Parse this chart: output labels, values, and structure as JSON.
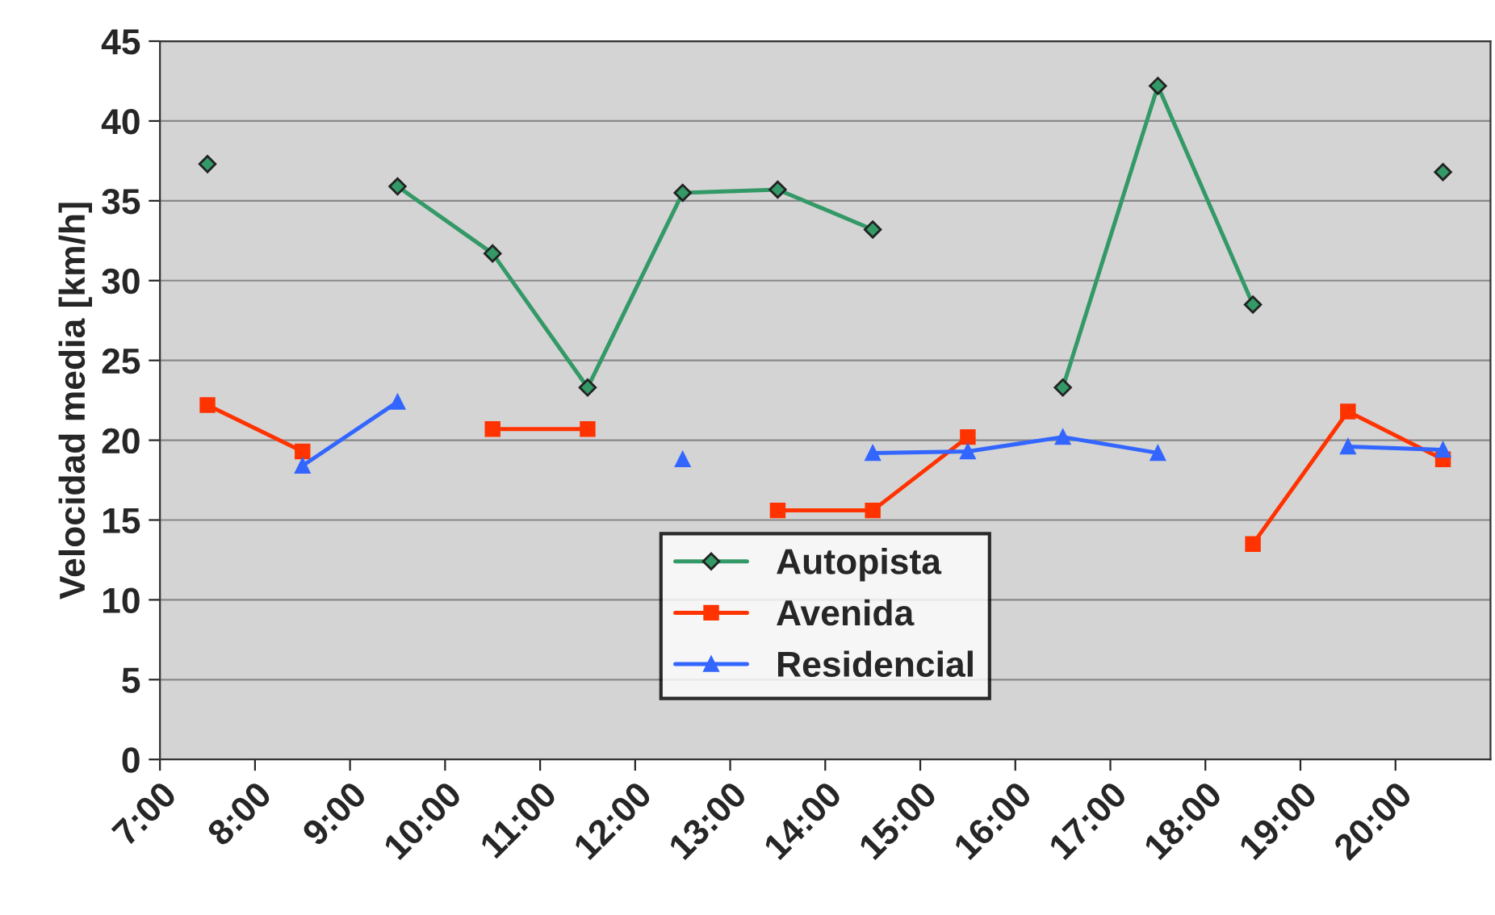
{
  "chart_data": {
    "type": "line",
    "ylabel": "Velocidad media [km/h]",
    "x": [
      7.5,
      8.5,
      9.5,
      10.5,
      11.5,
      12.5,
      13.5,
      14.5,
      15.5,
      16.5,
      17.5,
      18.5,
      19.5,
      20.5
    ],
    "xlim": [
      7,
      21
    ],
    "xticks": [
      {
        "value": 7,
        "label": "7:00"
      },
      {
        "value": 8,
        "label": "8:00"
      },
      {
        "value": 9,
        "label": "9:00"
      },
      {
        "value": 10,
        "label": "10:00"
      },
      {
        "value": 11,
        "label": "11:00"
      },
      {
        "value": 12,
        "label": "12:00"
      },
      {
        "value": 13,
        "label": "13:00"
      },
      {
        "value": 14,
        "label": "14:00"
      },
      {
        "value": 15,
        "label": "15:00"
      },
      {
        "value": 16,
        "label": "16:00"
      },
      {
        "value": 17,
        "label": "17:00"
      },
      {
        "value": 18,
        "label": "18:00"
      },
      {
        "value": 19,
        "label": "19:00"
      },
      {
        "value": 20,
        "label": "20:00"
      }
    ],
    "ylim": [
      0,
      45
    ],
    "yticks": [
      0,
      5,
      10,
      15,
      20,
      25,
      30,
      35,
      40,
      45
    ],
    "grid": "y",
    "legend": "bottom",
    "line_style": "solid",
    "series": [
      {
        "name": "Autopista",
        "color": "#339966",
        "marker": "diamond",
        "values": [
          37.3,
          null,
          35.9,
          31.7,
          23.3,
          35.5,
          35.7,
          33.2,
          null,
          23.3,
          42.2,
          28.5,
          null,
          36.8
        ]
      },
      {
        "name": "Avenida",
        "color": "#ff3300",
        "marker": "square",
        "values": [
          22.2,
          19.3,
          null,
          20.7,
          20.7,
          null,
          15.6,
          15.6,
          20.2,
          null,
          null,
          13.5,
          21.8,
          18.8
        ]
      },
      {
        "name": "Residencial",
        "color": "#3366ff",
        "marker": "triangle",
        "values": [
          null,
          18.4,
          22.4,
          null,
          null,
          18.8,
          null,
          19.2,
          19.3,
          20.2,
          19.2,
          null,
          19.6,
          19.4
        ]
      }
    ]
  }
}
